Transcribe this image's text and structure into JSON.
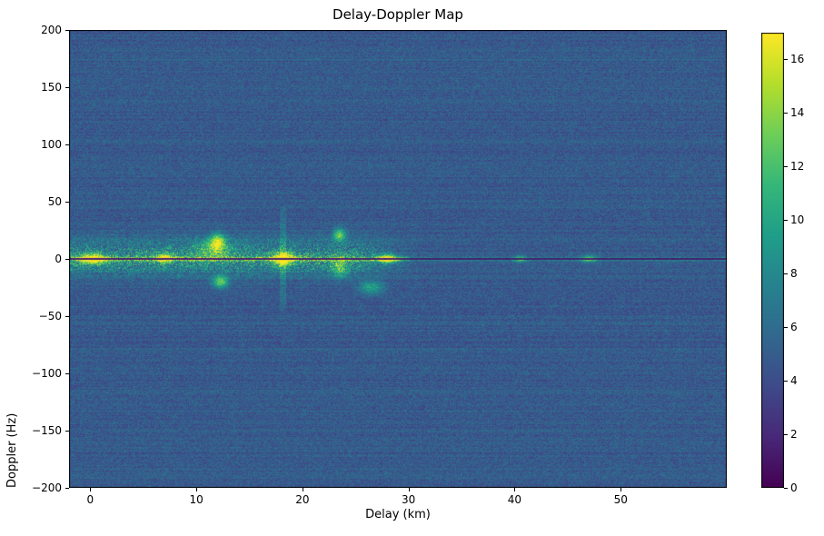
{
  "chart_data": {
    "type": "heatmap",
    "title": "Delay-Doppler Map",
    "xlabel": "Delay (km)",
    "ylabel": "Doppler (Hz)",
    "xlim": [
      -2,
      60
    ],
    "ylim": [
      -200,
      200
    ],
    "x_ticks": [
      0,
      10,
      20,
      30,
      40,
      50
    ],
    "y_ticks": [
      -200,
      -150,
      -100,
      -50,
      0,
      50,
      100,
      150,
      200
    ],
    "colormap": "viridis",
    "colormap_stops": [
      "#440154",
      "#482878",
      "#3e4a89",
      "#31688e",
      "#26828e",
      "#1f9e89",
      "#35b779",
      "#6ece58",
      "#b5de2b",
      "#fde725"
    ],
    "vmin": 0,
    "vmax": 17,
    "colorbar_ticks": [
      0,
      2,
      4,
      6,
      8,
      10,
      12,
      14,
      16
    ],
    "legend": "none",
    "grid": false,
    "field": {
      "background_value": 4.8,
      "noise_amp": 1.5,
      "row_streak_amp": 0.55,
      "clutter_band": {
        "delay_range": [
          -2,
          31
        ],
        "doppler_sigma_up": 12,
        "doppler_sigma_down": 10,
        "amp": 5.5
      },
      "zero_doppler_line": {
        "halfwidth_hz": 1.8,
        "amp_near": 7.5,
        "amp_far": 3.5,
        "transition_delay_km": 30
      },
      "zero_doppler_notch": {
        "halfwidth_hz": 0.45,
        "value": 1.0
      },
      "vertical_streak": {
        "delay_km": 18.2,
        "halfwidth_km": 0.3,
        "doppler_range": [
          -45,
          45
        ],
        "amp": 2.6
      },
      "bright_spots": [
        {
          "delay": 0.3,
          "doppler": 0,
          "amp": 12,
          "sigma_delay": 0.8,
          "sigma_doppler": 3
        },
        {
          "delay": 7.0,
          "doppler": 1,
          "amp": 9,
          "sigma_delay": 0.6,
          "sigma_doppler": 3
        },
        {
          "delay": 11.5,
          "doppler": 8,
          "amp": 5,
          "sigma_delay": 1.2,
          "sigma_doppler": 6
        },
        {
          "delay": 12.0,
          "doppler": 15,
          "amp": 9,
          "sigma_delay": 0.5,
          "sigma_doppler": 5
        },
        {
          "delay": 12.3,
          "doppler": -20,
          "amp": 8,
          "sigma_delay": 0.5,
          "sigma_doppler": 4
        },
        {
          "delay": 18.2,
          "doppler": 0,
          "amp": 12,
          "sigma_delay": 0.7,
          "sigma_doppler": 4
        },
        {
          "delay": 23.5,
          "doppler": 21,
          "amp": 8,
          "sigma_delay": 0.4,
          "sigma_doppler": 4
        },
        {
          "delay": 23.5,
          "doppler": -8,
          "amp": 6,
          "sigma_delay": 0.5,
          "sigma_doppler": 6
        },
        {
          "delay": 26.5,
          "doppler": -25,
          "amp": 5,
          "sigma_delay": 0.8,
          "sigma_doppler": 4
        },
        {
          "delay": 28.0,
          "doppler": 0,
          "amp": 11,
          "sigma_delay": 0.6,
          "sigma_doppler": 2.5
        },
        {
          "delay": 40.5,
          "doppler": 0,
          "amp": 6,
          "sigma_delay": 0.4,
          "sigma_doppler": 2
        },
        {
          "delay": 47.0,
          "doppler": 0,
          "amp": 7,
          "sigma_delay": 0.5,
          "sigma_doppler": 2
        }
      ]
    }
  }
}
